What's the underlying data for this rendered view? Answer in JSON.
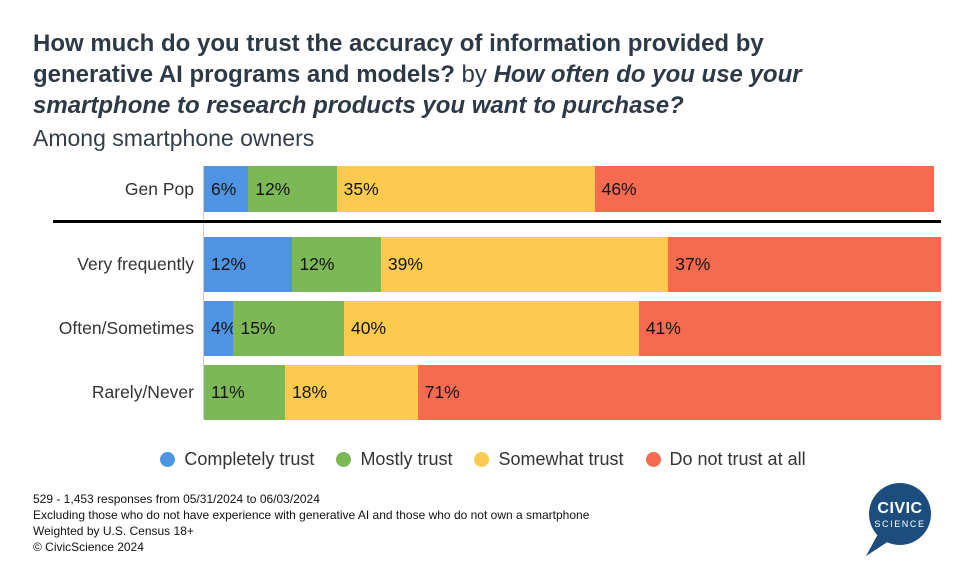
{
  "title": {
    "line1": "How much do you trust the accuracy of information provided by",
    "line2_question1_end": "generative AI programs and models?",
    "line2_connector": " by ",
    "line2_question2_start": "How often do you use your",
    "line3": "smartphone to research products you want to purchase?",
    "subtitle": "Among smartphone owners"
  },
  "chart_data": {
    "type": "bar",
    "orientation": "horizontal",
    "stacked": true,
    "title": "How much do you trust the accuracy of information provided by generative AI programs and models? by How often do you use your smartphone to research products you want to purchase?",
    "subtitle": "Among smartphone owners",
    "categories": [
      "Gen Pop",
      "Very frequently",
      "Often/Sometimes",
      "Rarely/Never"
    ],
    "series": [
      {
        "name": "Completely trust",
        "color": "#4E94E3",
        "values": [
          6,
          12,
          4,
          0
        ]
      },
      {
        "name": "Mostly trust",
        "color": "#7CB855",
        "values": [
          12,
          12,
          15,
          11
        ]
      },
      {
        "name": "Somewhat trust",
        "color": "#FCCA4E",
        "values": [
          35,
          39,
          40,
          18
        ]
      },
      {
        "name": "Do not trust at all",
        "color": "#F66A50",
        "values": [
          46,
          37,
          41,
          71
        ]
      }
    ],
    "value_suffix": "%",
    "xlim": [
      0,
      100
    ],
    "legend_position": "bottom",
    "grid": false,
    "separator_after_category": "Gen Pop"
  },
  "footer": {
    "line1": "529 - 1,453 responses from 05/31/2024 to 06/03/2024",
    "line2": "Excluding those who do not have experience with generative AI and those who do not own a smartphone",
    "line3": "Weighted by U.S. Census 18+",
    "line4": "© CivicScience 2024"
  },
  "logo": {
    "line1": "CIVIC",
    "line2": "SCIENCE",
    "color": "#1D4D7C"
  }
}
